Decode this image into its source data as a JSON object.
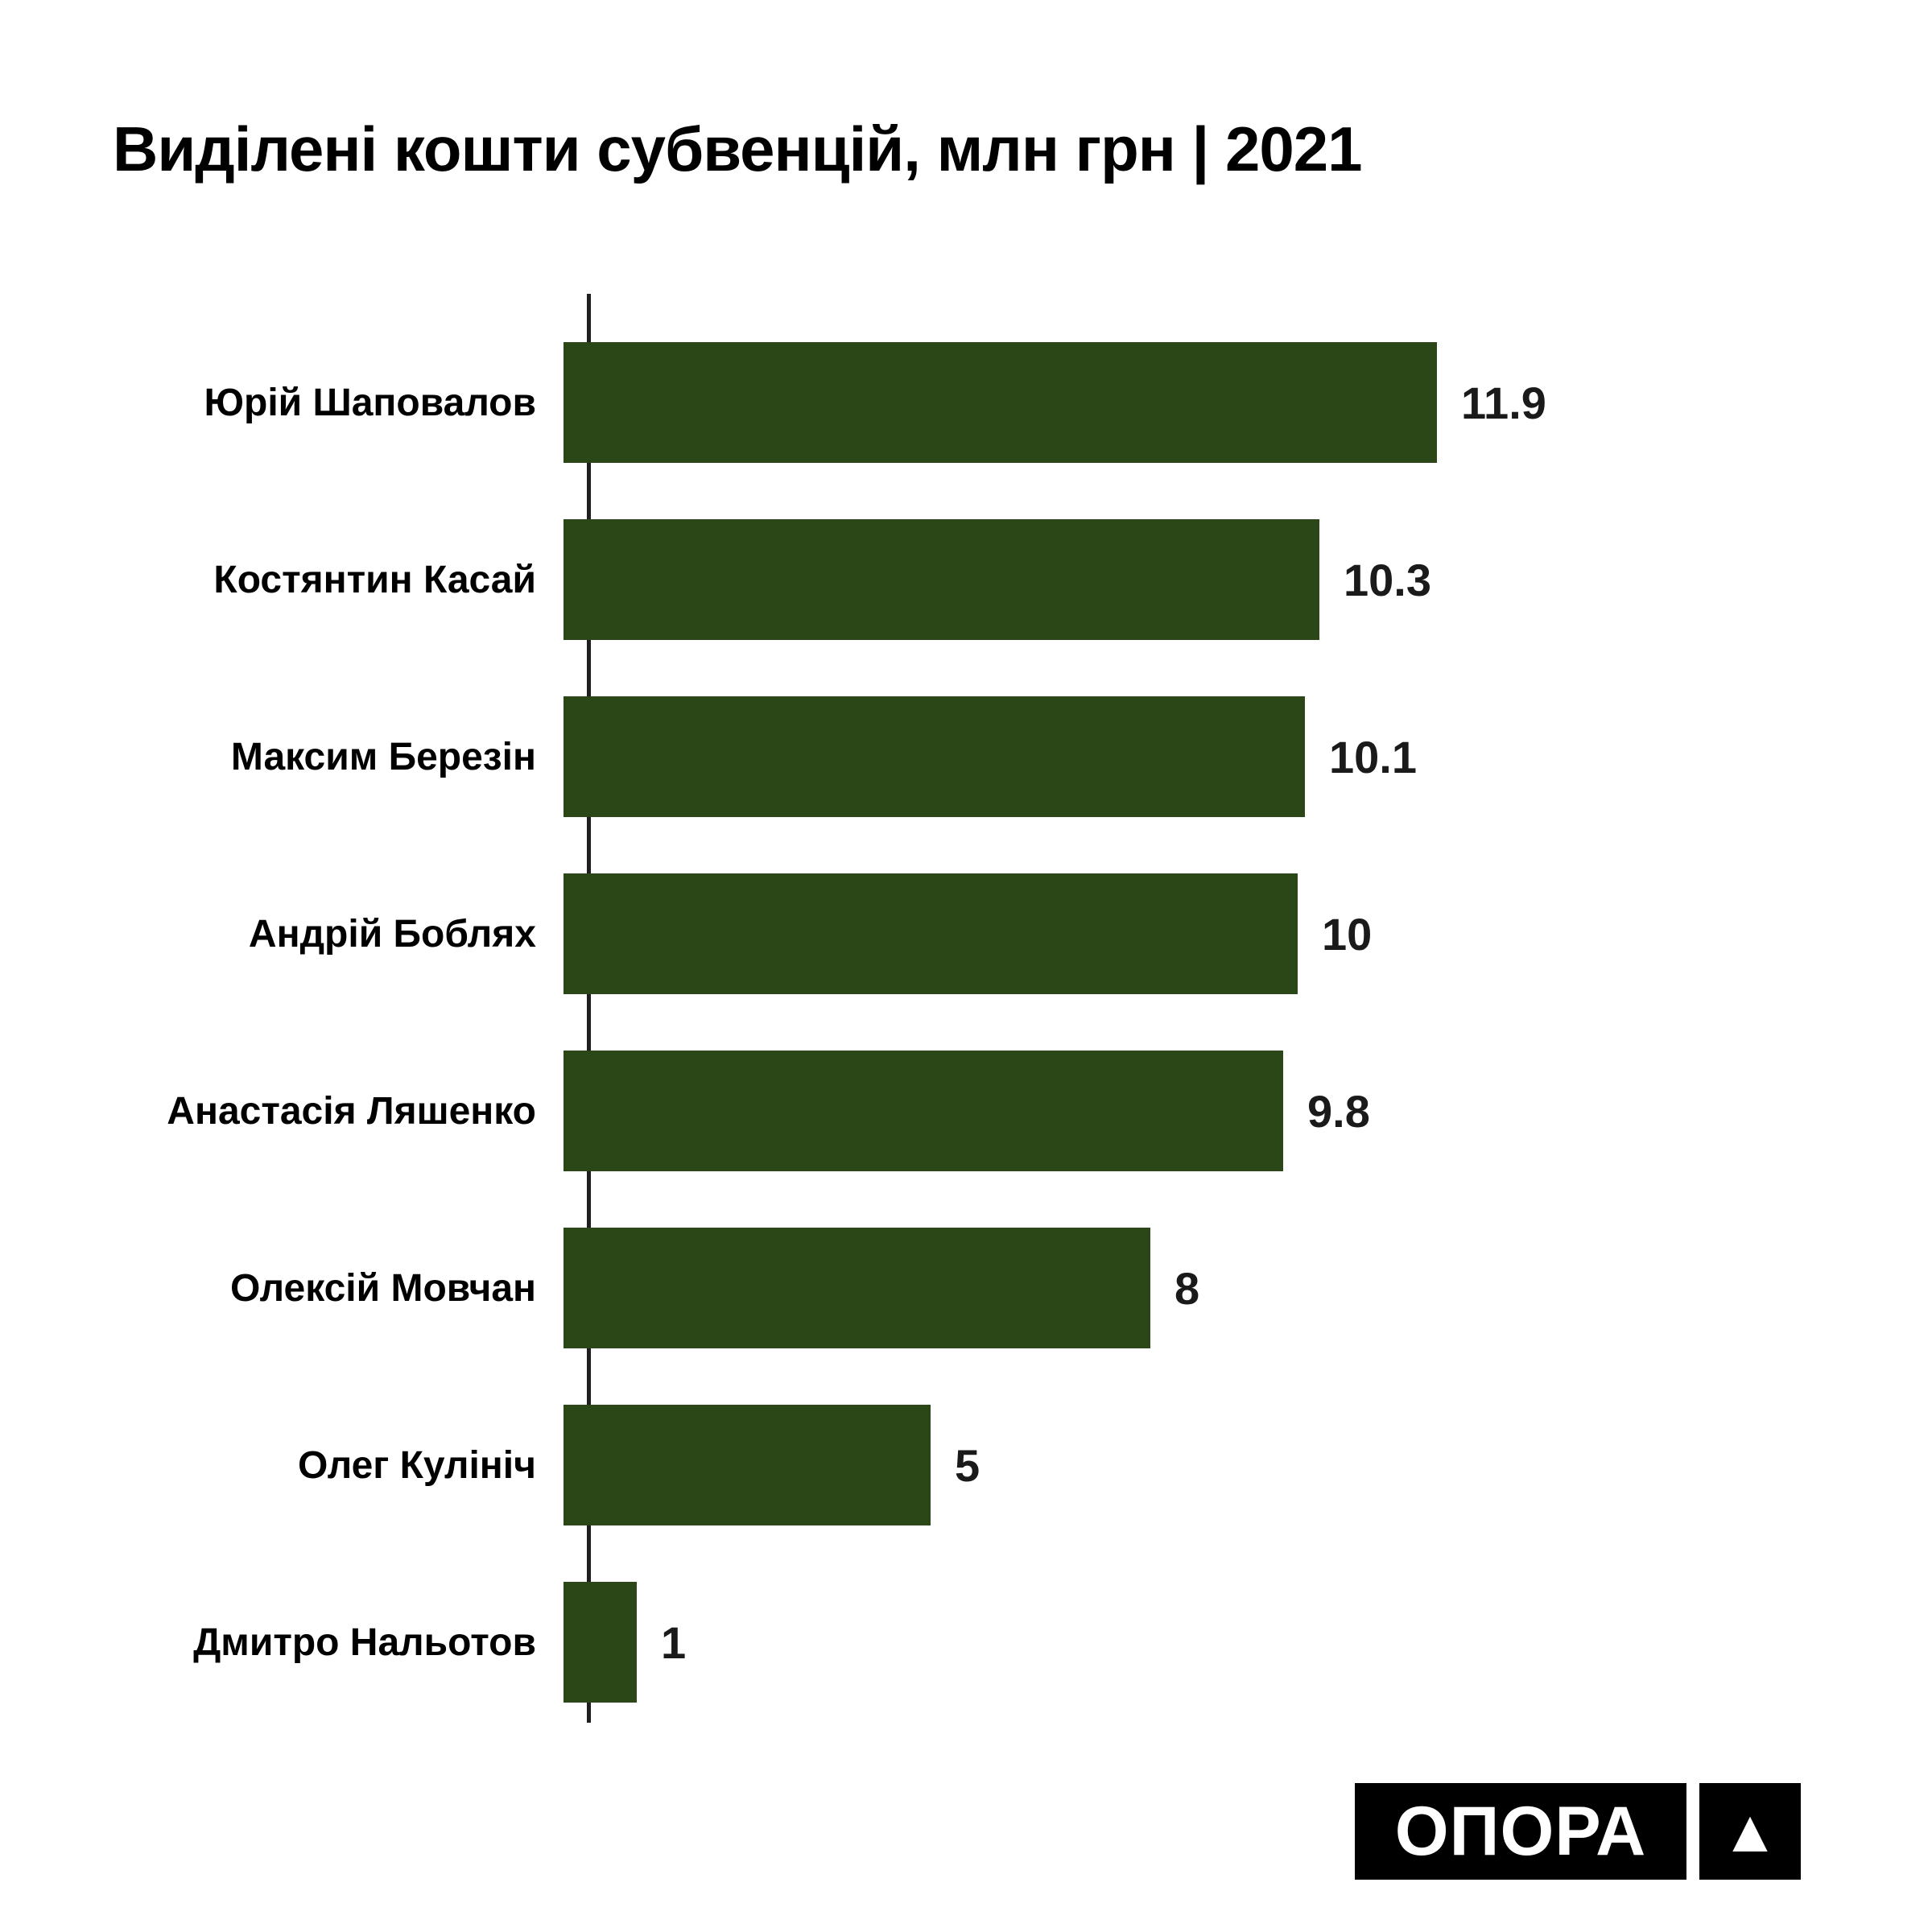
{
  "title": "Виділені кошти субвенцій, млн грн | 2021",
  "chart_data": {
    "type": "bar",
    "orientation": "horizontal",
    "title": "Виділені кошти субвенцій, млн грн | 2021",
    "categories": [
      "Юрій Шаповалов",
      "Костянтин Касай",
      "Максим Березін",
      "Андрій Боблях",
      "Анастасія Ляшенко",
      "Олексій Мовчан",
      "Олег Кулініч",
      "Дмитро Нальотов"
    ],
    "values": [
      11.9,
      10.3,
      10.1,
      10,
      9.8,
      8,
      5,
      1
    ],
    "value_labels": [
      "11.9",
      "10.3",
      "10.1",
      "10",
      "9.8",
      "8",
      "5",
      "1"
    ],
    "xlabel": "",
    "ylabel": "",
    "xlim": [
      0,
      12.4
    ],
    "grid": false,
    "legend": "none",
    "bar_color": "#2b4718",
    "axis_color": "#1f1f1f",
    "value_label_color": "#1a1a1a"
  },
  "logo": {
    "text": "ОПОРА",
    "triangle_icon": "▲",
    "bg_color": "#000000",
    "fg_color": "#ffffff"
  }
}
